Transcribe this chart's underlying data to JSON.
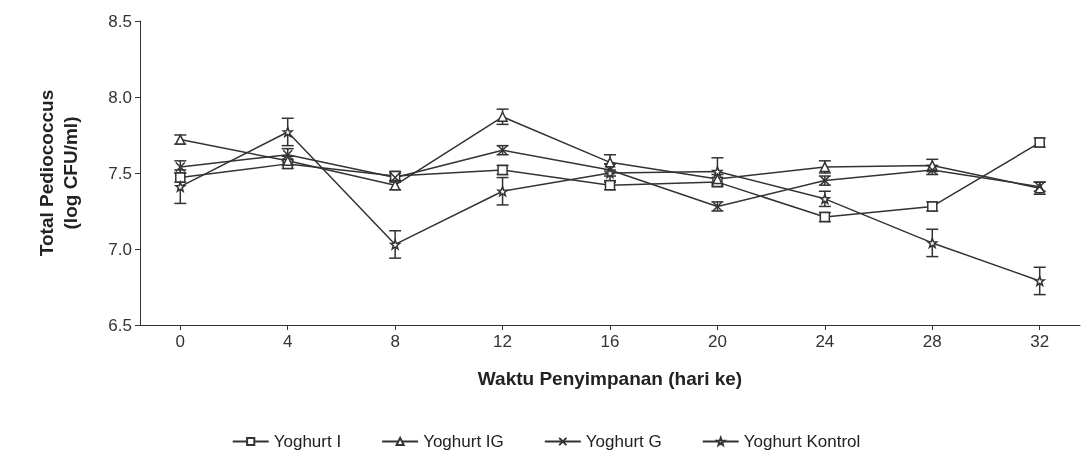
{
  "chart_data": {
    "type": "line",
    "xlabel": "Waktu Penyimpanan (hari ke)",
    "ylabel": "Total Pediococcus\n(log CFU/ml)",
    "x": [
      0,
      4,
      8,
      12,
      16,
      20,
      24,
      28,
      32
    ],
    "xlim": [
      -1.5,
      33.5
    ],
    "xticks": [
      0,
      4,
      8,
      12,
      16,
      20,
      24,
      28,
      32
    ],
    "ylim": [
      6.5,
      8.5
    ],
    "yticks": [
      {
        "value": 6.5,
        "label": "6.5"
      },
      {
        "value": 7,
        "label": "7.0"
      },
      {
        "value": 7.5,
        "label": "7.5"
      },
      {
        "value": 8,
        "label": "8.0"
      },
      {
        "value": 8.5,
        "label": "8.5"
      }
    ],
    "grid": false,
    "legend": "bottom",
    "line_style": "solid",
    "series": [
      {
        "name": "Yoghurt I",
        "color": "#333333",
        "marker": "square",
        "values": [
          7.47,
          7.56,
          7.48,
          7.52,
          7.42,
          7.44,
          7.21,
          7.28,
          7.7
        ],
        "errors": [
          0.03,
          0.03,
          0.03,
          0.03,
          0.03,
          0.03,
          0.03,
          0.03,
          0.03
        ]
      },
      {
        "name": "Yoghurt IG",
        "color": "#333333",
        "marker": "triangle",
        "values": [
          7.72,
          7.58,
          7.42,
          7.87,
          7.57,
          7.46,
          7.54,
          7.55,
          7.4
        ],
        "errors": [
          0.03,
          0.03,
          0.03,
          0.05,
          0.05,
          0.03,
          0.04,
          0.04,
          0.04
        ]
      },
      {
        "name": "Yoghurt G",
        "color": "#333333",
        "marker": "cross",
        "values": [
          7.54,
          7.62,
          7.47,
          7.65,
          7.52,
          7.28,
          7.45,
          7.52,
          7.41
        ],
        "errors": [
          0.04,
          0.04,
          0.03,
          0.03,
          0.04,
          0.03,
          0.03,
          0.03,
          0.03
        ]
      },
      {
        "name": "Yoghurt Kontrol",
        "color": "#333333",
        "marker": "star",
        "values": [
          7.41,
          7.77,
          7.03,
          7.38,
          7.5,
          7.51,
          7.33,
          7.04,
          6.79
        ],
        "errors": [
          0.11,
          0.09,
          0.09,
          0.09,
          0.06,
          0.09,
          0.05,
          0.09,
          0.09
        ]
      }
    ]
  }
}
